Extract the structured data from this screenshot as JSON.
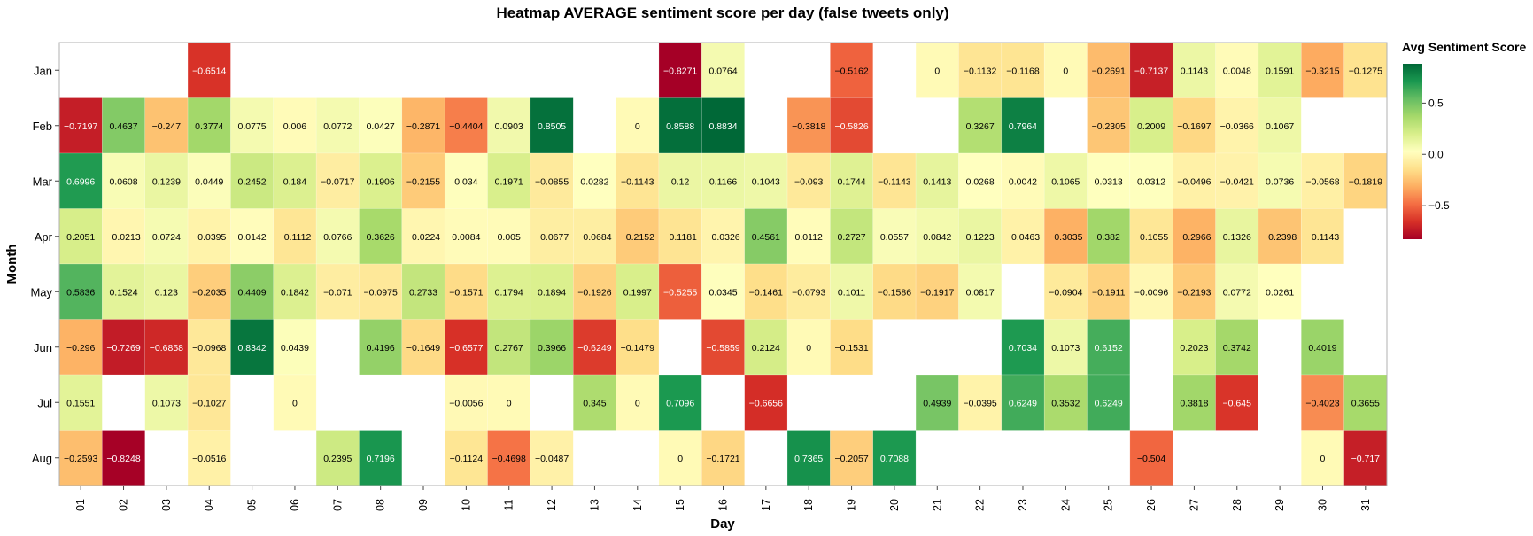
{
  "chart_data": {
    "type": "heatmap",
    "title": "Heatmap AVERAGE sentiment score per day (false tweets only)",
    "xlabel": "Day",
    "ylabel": "Month",
    "legend_title": "Avg Sentiment Score",
    "legend_ticks": [
      "0.5",
      "0.0",
      "−0.5"
    ],
    "legend_tick_values": [
      0.5,
      0.0,
      -0.5
    ],
    "legend_placement": "right",
    "value_range": [
      -0.8271,
      0.8834
    ],
    "colorscale": "RdYlGn",
    "colors": [
      "#a50026",
      "#d73027",
      "#f46d43",
      "#fdae61",
      "#fee08b",
      "#ffffbf",
      "#d9ef8b",
      "#a6d96a",
      "#66bd63",
      "#1a9850",
      "#006837"
    ],
    "days": [
      "01",
      "02",
      "03",
      "04",
      "05",
      "06",
      "07",
      "08",
      "09",
      "10",
      "11",
      "12",
      "13",
      "14",
      "15",
      "16",
      "17",
      "18",
      "19",
      "20",
      "21",
      "22",
      "23",
      "24",
      "25",
      "26",
      "27",
      "28",
      "29",
      "30",
      "31"
    ],
    "months": [
      "Jan",
      "Feb",
      "Mar",
      "Apr",
      "May",
      "Jun",
      "Jul",
      "Aug"
    ],
    "values": [
      [
        null,
        null,
        null,
        -0.6514,
        null,
        null,
        null,
        null,
        null,
        null,
        null,
        null,
        null,
        null,
        -0.8271,
        0.0764,
        null,
        null,
        -0.5162,
        null,
        0,
        -0.1132,
        -0.1168,
        0,
        -0.2691,
        -0.7137,
        0.1143,
        0.0048,
        0.1591,
        -0.3215,
        -0.1275
      ],
      [
        -0.7197,
        0.4637,
        -0.247,
        0.3774,
        0.0775,
        0.006,
        0.0772,
        0.0427,
        -0.2871,
        -0.4404,
        0.0903,
        0.8505,
        null,
        0,
        0.8588,
        0.8834,
        null,
        -0.3818,
        -0.5826,
        null,
        null,
        0.3267,
        0.7964,
        null,
        -0.2305,
        0.2009,
        -0.1697,
        -0.0366,
        0.1067,
        null,
        null
      ],
      [
        0.6996,
        0.0608,
        0.1239,
        0.0449,
        0.2452,
        0.184,
        -0.0717,
        0.1906,
        -0.2155,
        0.034,
        0.1971,
        -0.0855,
        0.0282,
        -0.1143,
        0.12,
        0.1166,
        0.1043,
        -0.093,
        0.1744,
        -0.1143,
        0.1413,
        0.0268,
        0.0042,
        0.1065,
        0.0313,
        0.0312,
        -0.0496,
        -0.0421,
        0.0736,
        -0.0568,
        -0.1819
      ],
      [
        0.2051,
        -0.0213,
        0.0724,
        -0.0395,
        0.0142,
        -0.1112,
        0.0766,
        0.3626,
        -0.0224,
        0.0084,
        0.005,
        -0.0677,
        -0.0684,
        -0.2152,
        -0.1181,
        -0.0326,
        0.4561,
        0.0112,
        0.2727,
        0.0557,
        0.0842,
        0.1223,
        -0.0463,
        -0.3035,
        0.382,
        -0.1055,
        -0.2966,
        0.1326,
        -0.2398,
        -0.1143,
        null
      ],
      [
        0.5836,
        0.1524,
        0.123,
        -0.2035,
        0.4409,
        0.1842,
        -0.071,
        -0.0975,
        0.2733,
        -0.1571,
        0.1794,
        0.1894,
        -0.1926,
        0.1997,
        -0.5255,
        0.0345,
        -0.1461,
        -0.0793,
        0.1011,
        -0.1586,
        -0.1917,
        0.0817,
        null,
        -0.0904,
        -0.1911,
        -0.0096,
        -0.2193,
        0.0772,
        0.0261,
        null,
        null
      ],
      [
        -0.296,
        -0.7269,
        -0.6858,
        -0.0968,
        0.8342,
        0.0439,
        null,
        0.4196,
        -0.1649,
        -0.6577,
        0.2767,
        0.3966,
        -0.6249,
        -0.1479,
        null,
        -0.5859,
        0.2124,
        0,
        -0.1531,
        null,
        null,
        null,
        0.7034,
        0.1073,
        0.6152,
        null,
        0.2023,
        0.3742,
        null,
        0.4019,
        null
      ],
      [
        0.1551,
        null,
        0.1073,
        -0.1027,
        null,
        0,
        null,
        null,
        null,
        -0.0056,
        0,
        null,
        0.345,
        0,
        0.7096,
        null,
        -0.6656,
        null,
        null,
        null,
        0.4939,
        -0.0395,
        0.6249,
        0.3532,
        0.6249,
        null,
        0.3818,
        -0.645,
        null,
        -0.4023,
        0.3655
      ],
      [
        -0.2593,
        -0.8248,
        null,
        -0.0516,
        null,
        null,
        0.2395,
        0.7196,
        null,
        -0.1124,
        -0.4698,
        -0.0487,
        null,
        null,
        0,
        -0.1721,
        null,
        0.7365,
        -0.2057,
        0.7088,
        null,
        null,
        null,
        null,
        null,
        -0.504,
        null,
        null,
        null,
        0,
        -0.717
      ]
    ]
  }
}
